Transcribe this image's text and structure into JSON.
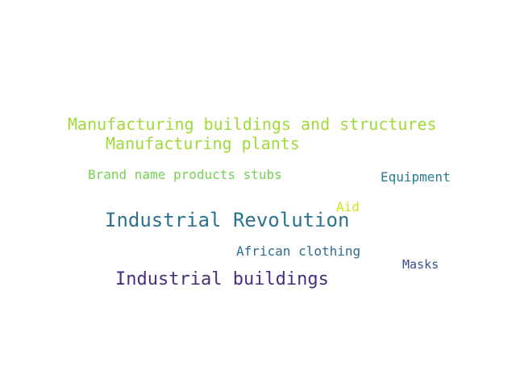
{
  "words": [
    {
      "text": "Manufacturing buildings and structures",
      "color": "#a0da39"
    },
    {
      "text": "Manufacturing plants",
      "color": "#a0da39"
    },
    {
      "text": "Brand name products stubs",
      "color": "#75d054"
    },
    {
      "text": "Equipment",
      "color": "#2a788e"
    },
    {
      "text": "Aid",
      "color": "#d8e219"
    },
    {
      "text": "Industrial Revolution",
      "color": "#2c728e"
    },
    {
      "text": "African clothing",
      "color": "#2f6c8e"
    },
    {
      "text": "Masks",
      "color": "#3e4c8a"
    },
    {
      "text": "Industrial buildings",
      "color": "#472f7d"
    }
  ]
}
